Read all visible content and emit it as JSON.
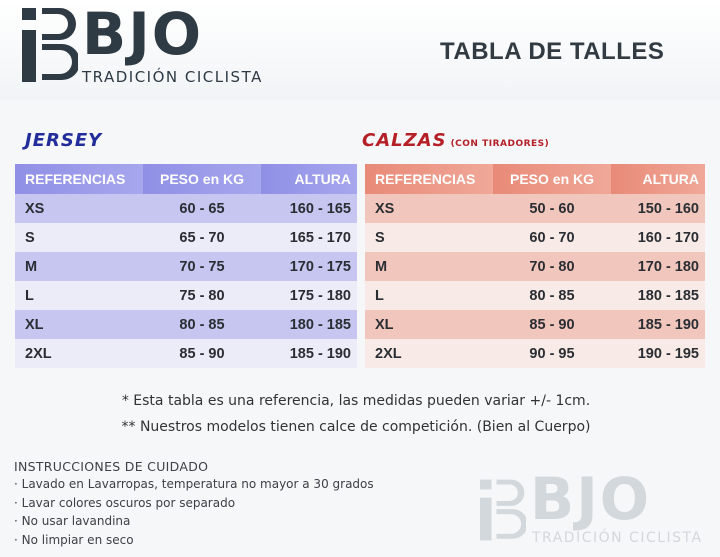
{
  "brand": {
    "logo_letters": "BJO",
    "tagline": "TRADICIÓN CICLISTA",
    "accent": "#2e3a44"
  },
  "page": {
    "title": "TABLA DE TALLES"
  },
  "jersey": {
    "title": "JERSEY",
    "accent": "#222c9a",
    "headers": [
      "REFERENCIAS",
      "PESO en KG",
      "ALTURA"
    ],
    "rows": [
      [
        "XS",
        "60 - 65",
        "160 - 165"
      ],
      [
        "S",
        "65 - 70",
        "165 - 170"
      ],
      [
        "M",
        "70 - 75",
        "170 - 175"
      ],
      [
        "L",
        "75 - 80",
        "175 - 180"
      ],
      [
        "XL",
        "80 - 85",
        "180 - 185"
      ],
      [
        "2XL",
        "85 - 90",
        "185 - 190"
      ]
    ]
  },
  "calzas": {
    "title": "CALZAS",
    "subtitle": "(CON TIRADORES)",
    "accent": "#b52027",
    "headers": [
      "REFERENCIAS",
      "PESO en KG",
      "ALTURA"
    ],
    "rows": [
      [
        "XS",
        "50 - 60",
        "150 - 160"
      ],
      [
        "S",
        "60 - 70",
        "160 - 170"
      ],
      [
        "M",
        "70 - 80",
        "170 - 180"
      ],
      [
        "L",
        "80 - 85",
        "180 - 185"
      ],
      [
        "XL",
        "85 - 90",
        "185 - 190"
      ],
      [
        "2XL",
        "90 - 95",
        "190 - 195"
      ]
    ]
  },
  "notes": [
    "* Esta tabla es una referencia, las medidas pueden variar +/- 1cm.",
    "** Nuestros modelos tienen calce de competición. (Bien al Cuerpo)"
  ],
  "care": {
    "title": "INSTRUCCIONES DE CUIDADO",
    "items": [
      "Lavado en Lavarropas, temperatura no mayor a 30 grados",
      "Lavar colores oscuros por separado",
      "No usar lavandina",
      "No limpiar en seco"
    ]
  },
  "watermark": {
    "letters": "BJO",
    "tagline": "TRADICIÓN CICLISTA"
  }
}
